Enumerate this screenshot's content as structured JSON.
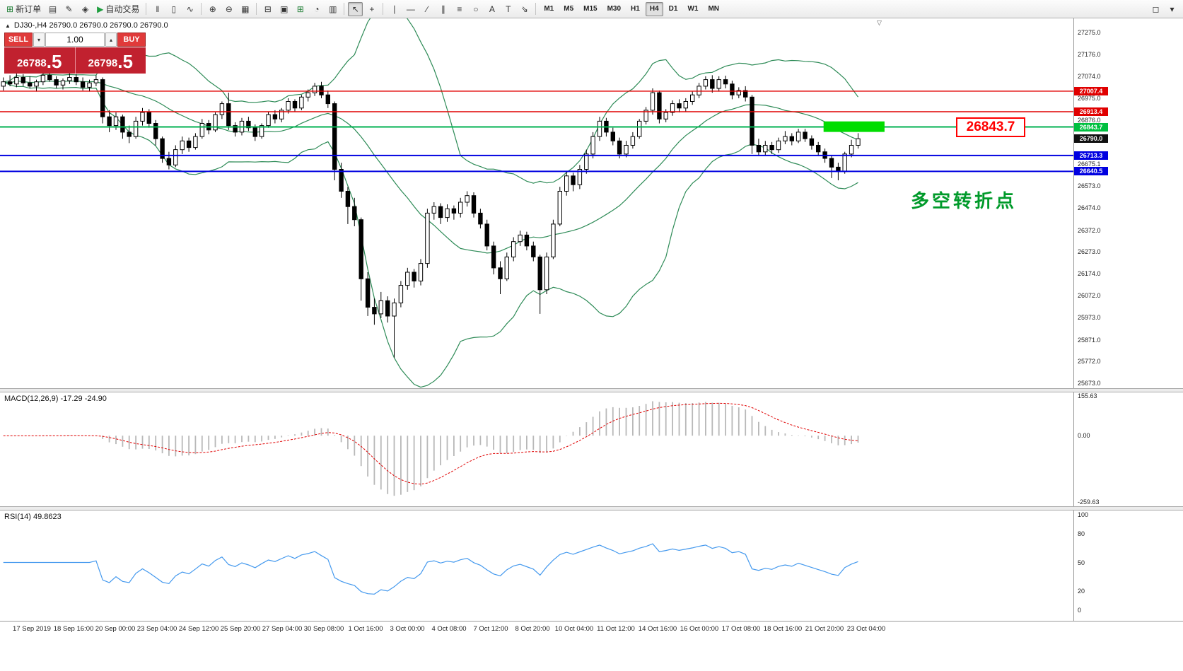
{
  "toolbar": {
    "buttons": [
      {
        "name": "new-order",
        "icon": "⊞",
        "icon_color": "#1e7e34",
        "label": "新订单"
      },
      {
        "name": "terminal",
        "icon": "▤"
      },
      {
        "name": "metaeditor",
        "icon": "✎"
      },
      {
        "name": "navigator",
        "icon": "◈"
      },
      {
        "name": "auto-trading",
        "icon": "▶",
        "icon_color": "#1e9e3e",
        "label": "自动交易"
      },
      {
        "sep": true
      },
      {
        "name": "chart-bars",
        "icon": "‖"
      },
      {
        "name": "chart-candles",
        "icon": "▯"
      },
      {
        "name": "chart-line",
        "icon": "∿"
      },
      {
        "sep": true
      },
      {
        "name": "zoom-in",
        "icon": "⊕"
      },
      {
        "name": "zoom-out",
        "icon": "⊖"
      },
      {
        "name": "indicators",
        "icon": "▦"
      },
      {
        "sep": true
      },
      {
        "name": "tile-windows",
        "icon": "⊟"
      },
      {
        "name": "cascade-windows",
        "icon": "▣"
      },
      {
        "name": "new-chart",
        "icon": "⊞",
        "icon_color": "#1e7e34"
      },
      {
        "name": "profiles",
        "icon": "◔"
      },
      {
        "name": "templates",
        "icon": "▥"
      },
      {
        "sep": true
      },
      {
        "name": "cursor",
        "icon": "↖",
        "active": true
      },
      {
        "name": "crosshair",
        "icon": "+"
      },
      {
        "sep": true
      },
      {
        "name": "vertical-line",
        "icon": "∣"
      },
      {
        "name": "horizontal-line",
        "icon": "―"
      },
      {
        "name": "trendline",
        "icon": "∕"
      },
      {
        "name": "channel",
        "icon": "∥"
      },
      {
        "name": "fibonacci",
        "icon": "≡"
      },
      {
        "name": "shapes",
        "icon": "○"
      },
      {
        "name": "text",
        "icon": "A"
      },
      {
        "name": "text-label",
        "icon": "T"
      },
      {
        "name": "arrows",
        "icon": "⇘"
      },
      {
        "sep": true
      },
      {
        "name": "tf-m1",
        "tf": "M1"
      },
      {
        "name": "tf-m5",
        "tf": "M5"
      },
      {
        "name": "tf-m15",
        "tf": "M15"
      },
      {
        "name": "tf-m30",
        "tf": "M30"
      },
      {
        "name": "tf-h1",
        "tf": "H1"
      },
      {
        "name": "tf-h4",
        "tf": "H4",
        "active": true
      },
      {
        "name": "tf-d1",
        "tf": "D1"
      },
      {
        "name": "tf-w1",
        "tf": "W1"
      },
      {
        "name": "tf-mn",
        "tf": "MN"
      },
      {
        "spacer": true
      },
      {
        "name": "chart-search",
        "icon": "◻"
      },
      {
        "name": "panel-toggle",
        "icon": "▾"
      }
    ],
    "active_timeframe": "H4"
  },
  "icons": {
    "symbol_marker": "▲",
    "spin_up": "▴",
    "spin_down": "▾",
    "shift_marker": "▽"
  },
  "trade_panel": {
    "sell_label": "SELL",
    "buy_label": "BUY",
    "volume": "1.00",
    "sell_price_main": "26788",
    "sell_price_frac": ".5",
    "buy_price_main": "26798",
    "buy_price_frac": ".5"
  },
  "chart": {
    "symbol_info": "DJ30-,H4  26790.0 26790.0 26790.0 26790.0",
    "annotation": "多空转折点",
    "callout_price": "26843.7"
  },
  "macd": {
    "label": "MACD(12,26,9) -17.29 -24.90",
    "ticks": [
      "155.63",
      "0.00",
      "-259.63"
    ],
    "tick_values": [
      155.63,
      0,
      -259.63
    ]
  },
  "rsi": {
    "label": "RSI(14) 49.8623",
    "ticks": [
      "100",
      "80",
      "50",
      "20",
      "0"
    ],
    "tick_values": [
      100,
      80,
      50,
      20,
      0
    ]
  },
  "chart_data": {
    "type": "candlestick",
    "symbol": "DJ30-",
    "timeframe": "H4",
    "ylim": [
      25673.0,
      27275.0
    ],
    "y_ticks": [
      27275.0,
      27176.0,
      27074.0,
      26975.0,
      26876.0,
      26675.1,
      26573.0,
      26474.0,
      26372.0,
      26273.0,
      26174.0,
      26072.0,
      25973.0,
      25871.0,
      25772.0,
      25673.0
    ],
    "current_price": 26790.0,
    "bollinger": {
      "period": 20,
      "deviation": 2,
      "color": "#2E8B57"
    },
    "indicators": [
      {
        "type": "MACD",
        "params": [
          12,
          26,
          9
        ],
        "last_values": [
          -17.29,
          -24.9
        ],
        "scale": [
          155.63,
          -259.63
        ]
      },
      {
        "type": "RSI",
        "params": [
          14
        ],
        "last_value": 49.8623,
        "scale": [
          0,
          100
        ]
      }
    ],
    "horizontal_lines": [
      {
        "value": 27007.4,
        "color": "#e00000",
        "width": 1.4
      },
      {
        "value": 26913.4,
        "color": "#e00000",
        "width": 1.4
      },
      {
        "value": 26843.7,
        "color": "#00b050",
        "width": 2
      },
      {
        "value": 26713.3,
        "color": "#0000e0",
        "width": 2
      },
      {
        "value": 26640.5,
        "color": "#0000e0",
        "width": 2
      }
    ],
    "price_badges": [
      {
        "label": "27007.4",
        "value": 27007.4,
        "bg": "#e00000"
      },
      {
        "label": "26913.4",
        "value": 26913.4,
        "bg": "#e00000"
      },
      {
        "label": "26843.7",
        "value": 26843.7,
        "bg": "#00c040"
      },
      {
        "label": "26790.0",
        "value": 26790.0,
        "bg": "#101010"
      },
      {
        "label": "26713.3",
        "value": 26713.3,
        "bg": "#0000e0"
      },
      {
        "label": "26640.5",
        "value": 26640.5,
        "bg": "#0000e0"
      }
    ],
    "highlight_zone": {
      "start_bar": 124.3,
      "end_bar": 133.5,
      "top": 26869,
      "bottom": 26821,
      "color": "#00dd00"
    },
    "x_labels": [
      "17 Sep 2019",
      "18 Sep 16:00",
      "20 Sep 00:00",
      "23 Sep 04:00",
      "24 Sep 12:00",
      "25 Sep 20:00",
      "27 Sep 04:00",
      "30 Sep 08:00",
      "1 Oct 16:00",
      "3 Oct 00:00",
      "4 Oct 08:00",
      "7 Oct 12:00",
      "8 Oct 20:00",
      "10 Oct 04:00",
      "11 Oct 12:00",
      "14 Oct 16:00",
      "16 Oct 00:00",
      "17 Oct 08:00",
      "18 Oct 16:00",
      "21 Oct 20:00",
      "23 Oct 04:00"
    ],
    "candles": [
      [
        27030,
        27070,
        27010,
        27050
      ],
      [
        27050,
        27080,
        27030,
        27040
      ],
      [
        27040,
        27090,
        27025,
        27070
      ],
      [
        27070,
        27085,
        27030,
        27045
      ],
      [
        27045,
        27075,
        27020,
        27030
      ],
      [
        27030,
        27060,
        27005,
        27050
      ],
      [
        27050,
        27095,
        27035,
        27080
      ],
      [
        27080,
        27100,
        27050,
        27060
      ],
      [
        27060,
        27075,
        27020,
        27035
      ],
      [
        27035,
        27065,
        27015,
        27055
      ],
      [
        27055,
        27090,
        27040,
        27070
      ],
      [
        27070,
        27085,
        27035,
        27050
      ],
      [
        27050,
        27070,
        27010,
        27025
      ],
      [
        27025,
        27060,
        27005,
        27045
      ],
      [
        27045,
        27080,
        27030,
        27060
      ],
      [
        27060,
        27070,
        26860,
        26890
      ],
      [
        26890,
        26920,
        26820,
        26850
      ],
      [
        26850,
        26910,
        26830,
        26890
      ],
      [
        26890,
        26900,
        26790,
        26820
      ],
      [
        26820,
        26850,
        26770,
        26800
      ],
      [
        26800,
        26890,
        26790,
        26870
      ],
      [
        26870,
        26930,
        26850,
        26910
      ],
      [
        26910,
        26925,
        26840,
        26860
      ],
      [
        26860,
        26875,
        26760,
        26790
      ],
      [
        26790,
        26800,
        26680,
        26700
      ],
      [
        26700,
        26730,
        26650,
        26670
      ],
      [
        26670,
        26760,
        26660,
        26740
      ],
      [
        26740,
        26800,
        26720,
        26780
      ],
      [
        26780,
        26795,
        26730,
        26750
      ],
      [
        26750,
        26815,
        26740,
        26800
      ],
      [
        26800,
        26880,
        26790,
        26860
      ],
      [
        26860,
        26875,
        26810,
        26830
      ],
      [
        26830,
        26910,
        26820,
        26900
      ],
      [
        26900,
        26960,
        26880,
        26950
      ],
      [
        26950,
        27000,
        26830,
        26850
      ],
      [
        26850,
        26865,
        26800,
        26820
      ],
      [
        26820,
        26885,
        26805,
        26870
      ],
      [
        26870,
        26890,
        26825,
        26840
      ],
      [
        26840,
        26855,
        26780,
        26800
      ],
      [
        26800,
        26860,
        26790,
        26850
      ],
      [
        26850,
        26915,
        26840,
        26900
      ],
      [
        26900,
        26920,
        26860,
        26880
      ],
      [
        26880,
        26930,
        26865,
        26920
      ],
      [
        26920,
        26975,
        26905,
        26960
      ],
      [
        26960,
        26970,
        26915,
        26930
      ],
      [
        26930,
        26990,
        26920,
        26980
      ],
      [
        26980,
        27015,
        26960,
        27000
      ],
      [
        27000,
        27045,
        26985,
        27030
      ],
      [
        27030,
        27050,
        26975,
        26990
      ],
      [
        26990,
        27010,
        26930,
        26950
      ],
      [
        26950,
        26960,
        26600,
        26650
      ],
      [
        26650,
        26680,
        26520,
        26550
      ],
      [
        26550,
        26570,
        26400,
        26480
      ],
      [
        26480,
        26520,
        26390,
        26420
      ],
      [
        26420,
        26430,
        26050,
        26150
      ],
      [
        26150,
        26180,
        25980,
        26020
      ],
      [
        26020,
        26060,
        25940,
        25990
      ],
      [
        25990,
        26090,
        25970,
        26050
      ],
      [
        26050,
        26070,
        25950,
        25980
      ],
      [
        25980,
        26060,
        25790,
        26040
      ],
      [
        26040,
        26140,
        26020,
        26120
      ],
      [
        26120,
        26200,
        26100,
        26180
      ],
      [
        26180,
        26195,
        26110,
        26140
      ],
      [
        26140,
        26240,
        26120,
        26220
      ],
      [
        26220,
        26470,
        26200,
        26450
      ],
      [
        26450,
        26500,
        26420,
        26480
      ],
      [
        26480,
        26495,
        26400,
        26430
      ],
      [
        26430,
        26490,
        26410,
        26470
      ],
      [
        26470,
        26485,
        26420,
        26450
      ],
      [
        26450,
        26520,
        26430,
        26500
      ],
      [
        26500,
        26550,
        26480,
        26530
      ],
      [
        26530,
        26545,
        26430,
        26450
      ],
      [
        26450,
        26470,
        26380,
        26400
      ],
      [
        26400,
        26420,
        26280,
        26300
      ],
      [
        26300,
        26320,
        26170,
        26200
      ],
      [
        26200,
        26230,
        26080,
        26150
      ],
      [
        26150,
        26270,
        26140,
        26250
      ],
      [
        26250,
        26340,
        26230,
        26320
      ],
      [
        26320,
        26370,
        26300,
        26350
      ],
      [
        26350,
        26365,
        26280,
        26300
      ],
      [
        26300,
        26320,
        26230,
        26250
      ],
      [
        26250,
        26260,
        25990,
        26100
      ],
      [
        26100,
        26270,
        26080,
        26250
      ],
      [
        26250,
        26420,
        26240,
        26400
      ],
      [
        26400,
        26570,
        26390,
        26550
      ],
      [
        26550,
        26640,
        26530,
        26620
      ],
      [
        26620,
        26635,
        26550,
        26580
      ],
      [
        26580,
        26670,
        26560,
        26650
      ],
      [
        26650,
        26740,
        26630,
        26720
      ],
      [
        26720,
        26820,
        26700,
        26800
      ],
      [
        26800,
        26890,
        26780,
        26870
      ],
      [
        26870,
        26885,
        26800,
        26820
      ],
      [
        26820,
        26840,
        26760,
        26780
      ],
      [
        26780,
        26795,
        26700,
        26720
      ],
      [
        26720,
        26780,
        26705,
        26760
      ],
      [
        26760,
        26820,
        26745,
        26800
      ],
      [
        26800,
        26880,
        26790,
        26870
      ],
      [
        26870,
        26935,
        26855,
        26920
      ],
      [
        26920,
        27020,
        26900,
        27000
      ],
      [
        27000,
        27010,
        26860,
        26880
      ],
      [
        26880,
        26925,
        26865,
        26910
      ],
      [
        26910,
        26965,
        26895,
        26950
      ],
      [
        26950,
        26970,
        26910,
        26930
      ],
      [
        26930,
        26975,
        26915,
        26960
      ],
      [
        26960,
        27005,
        26945,
        26990
      ],
      [
        26990,
        27045,
        26975,
        27030
      ],
      [
        27030,
        27075,
        27015,
        27060
      ],
      [
        27060,
        27080,
        27000,
        27020
      ],
      [
        27020,
        27075,
        27005,
        27060
      ],
      [
        27060,
        27078,
        27020,
        27040
      ],
      [
        27040,
        27055,
        26970,
        26990
      ],
      [
        26990,
        27025,
        26975,
        27010
      ],
      [
        27010,
        27030,
        26960,
        26980
      ],
      [
        26980,
        26990,
        26720,
        26760
      ],
      [
        26760,
        26790,
        26710,
        26730
      ],
      [
        26730,
        26780,
        26715,
        26760
      ],
      [
        26760,
        26775,
        26720,
        26740
      ],
      [
        26740,
        26795,
        26725,
        26780
      ],
      [
        26780,
        26825,
        26765,
        26800
      ],
      [
        26800,
        26815,
        26760,
        26780
      ],
      [
        26780,
        26835,
        26770,
        26820
      ],
      [
        26820,
        26835,
        26775,
        26790
      ],
      [
        26790,
        26805,
        26740,
        26760
      ],
      [
        26760,
        26775,
        26710,
        26730
      ],
      [
        26730,
        26745,
        26680,
        26700
      ],
      [
        26700,
        26715,
        26610,
        26660
      ],
      [
        26660,
        26680,
        26600,
        26640
      ],
      [
        26640,
        26730,
        26630,
        26720
      ],
      [
        26720,
        26785,
        26705,
        26760
      ],
      [
        26760,
        26815,
        26745,
        26790
      ]
    ]
  }
}
